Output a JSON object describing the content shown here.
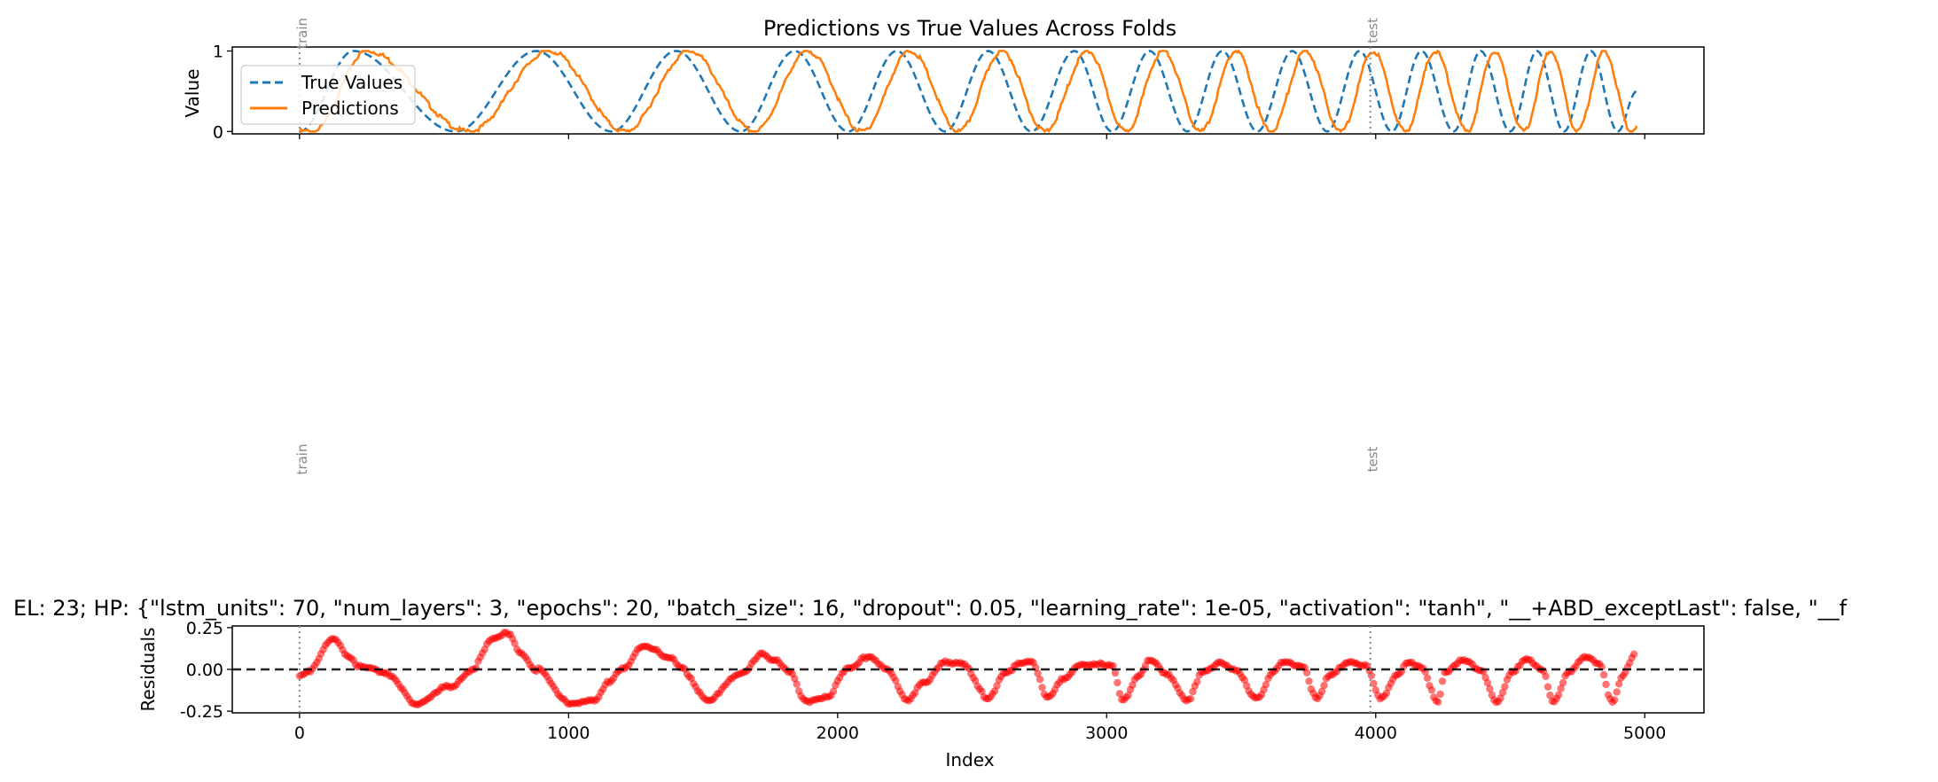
{
  "chart_data": [
    {
      "type": "line",
      "title": "Predictions vs True Values Across Folds",
      "xlabel": "",
      "ylabel": "Value",
      "xlim": [
        -250,
        5220
      ],
      "ylim": [
        -0.03,
        1.05
      ],
      "yticks": [
        0,
        1
      ],
      "ytick_labels": [
        "0",
        "1"
      ],
      "xticks": [
        0,
        1000,
        2000,
        3000,
        4000,
        5000
      ],
      "xtick_labels_shown": false,
      "grid": false,
      "legend": {
        "placement": "upper-left",
        "entries": [
          "True Values",
          "Predictions"
        ]
      },
      "signal": {
        "x_range": [
          0,
          4970
        ],
        "description_of_shape": "chirp: frequency increases with index; peaks at x",
        "peak_x": [
          200,
          880,
          1400,
          1840,
          2220,
          2560,
          2880,
          3160,
          3430,
          3690,
          3940,
          4170,
          4390,
          4600,
          4800
        ],
        "trough_x": [
          0,
          580,
          1160,
          1640,
          2040,
          2400,
          2720,
          3020,
          3300,
          3560,
          3820,
          4060,
          4290,
          4500,
          4700,
          4900
        ],
        "end_value": 0.5,
        "prediction_lag": 50
      },
      "series": [
        {
          "name": "True Values",
          "style": "dashed",
          "color": "#1f77b4"
        },
        {
          "name": "Predictions",
          "style": "solid",
          "color": "#ff7f0e"
        }
      ],
      "annotations": [
        {
          "x": 0,
          "label": "train"
        },
        {
          "x": 3980,
          "label": "test"
        }
      ]
    },
    {
      "type": "scatter",
      "title": "EL: 23; HP: {\"lstm_units\": 70, \"num_layers\": 3, \"epochs\": 20, \"batch_size\": 16, \"dropout\": 0.05, \"learning_rate\": 1e-05, \"activation\": \"tanh\", \"__+ABD_exceptLast\": false, \"__f",
      "xlabel": "Index",
      "ylabel": "Residuals",
      "xlim": [
        -250,
        5220
      ],
      "ylim": [
        -0.26,
        0.26
      ],
      "yticks": [
        -0.25,
        0,
        0.25
      ],
      "ytick_labels": [
        "-0.25",
        "0.00",
        "0.25"
      ],
      "xticks": [
        0,
        1000,
        2000,
        3000,
        4000,
        5000
      ],
      "xtick_labels": [
        "0",
        "1000",
        "2000",
        "3000",
        "4000",
        "5000"
      ],
      "grid": false,
      "reference_line": {
        "y": 0,
        "style": "dashed",
        "color": "#000000"
      },
      "series": [
        {
          "name": "",
          "color": "#ff0000",
          "profile_x": [
            0,
            30,
            130,
            180,
            230,
            330,
            440,
            560,
            640,
            720,
            780,
            820,
            880,
            1000,
            1100,
            1150,
            1200,
            1280,
            1380,
            1420,
            1520,
            1640,
            1720,
            1760,
            1820,
            1880,
            1960,
            2040,
            2120,
            2180,
            2260,
            2320,
            2400,
            2460,
            2560,
            2620,
            2680,
            2720,
            2780,
            2840,
            2900,
            3020,
            3060,
            3120,
            3160,
            3220,
            3300,
            3360,
            3430,
            3480,
            3560,
            3620,
            3660,
            3730,
            3780,
            3830,
            3900,
            3960,
            4020,
            4080,
            4120,
            4170,
            4230,
            4260,
            4330,
            4390,
            4450,
            4510,
            4560,
            4620,
            4660,
            4720,
            4780,
            4830,
            4880,
            4920,
            4960
          ],
          "profile_y": [
            -0.04,
            -0.02,
            0.19,
            0.08,
            0.01,
            -0.03,
            -0.21,
            -0.1,
            0.0,
            0.18,
            0.22,
            0.1,
            0.0,
            -0.2,
            -0.18,
            -0.08,
            0.0,
            0.15,
            0.06,
            0.0,
            -0.18,
            -0.03,
            0.1,
            0.06,
            -0.02,
            -0.19,
            -0.16,
            0.0,
            0.08,
            0.01,
            -0.19,
            -0.08,
            0.05,
            0.03,
            -0.17,
            -0.02,
            0.03,
            0.04,
            -0.16,
            -0.05,
            0.02,
            0.03,
            -0.18,
            -0.04,
            0.05,
            -0.02,
            -0.18,
            -0.02,
            0.04,
            0.0,
            -0.18,
            -0.02,
            0.05,
            0.02,
            -0.18,
            -0.04,
            0.05,
            0.03,
            -0.18,
            -0.04,
            0.05,
            0.02,
            -0.2,
            -0.02,
            0.06,
            0.0,
            -0.2,
            -0.02,
            0.07,
            0.0,
            -0.2,
            -0.02,
            0.08,
            0.04,
            -0.2,
            -0.04,
            0.08
          ]
        }
      ],
      "annotations": [
        {
          "x": 0,
          "label": "train"
        },
        {
          "x": 3980,
          "label": "test"
        }
      ]
    }
  ]
}
